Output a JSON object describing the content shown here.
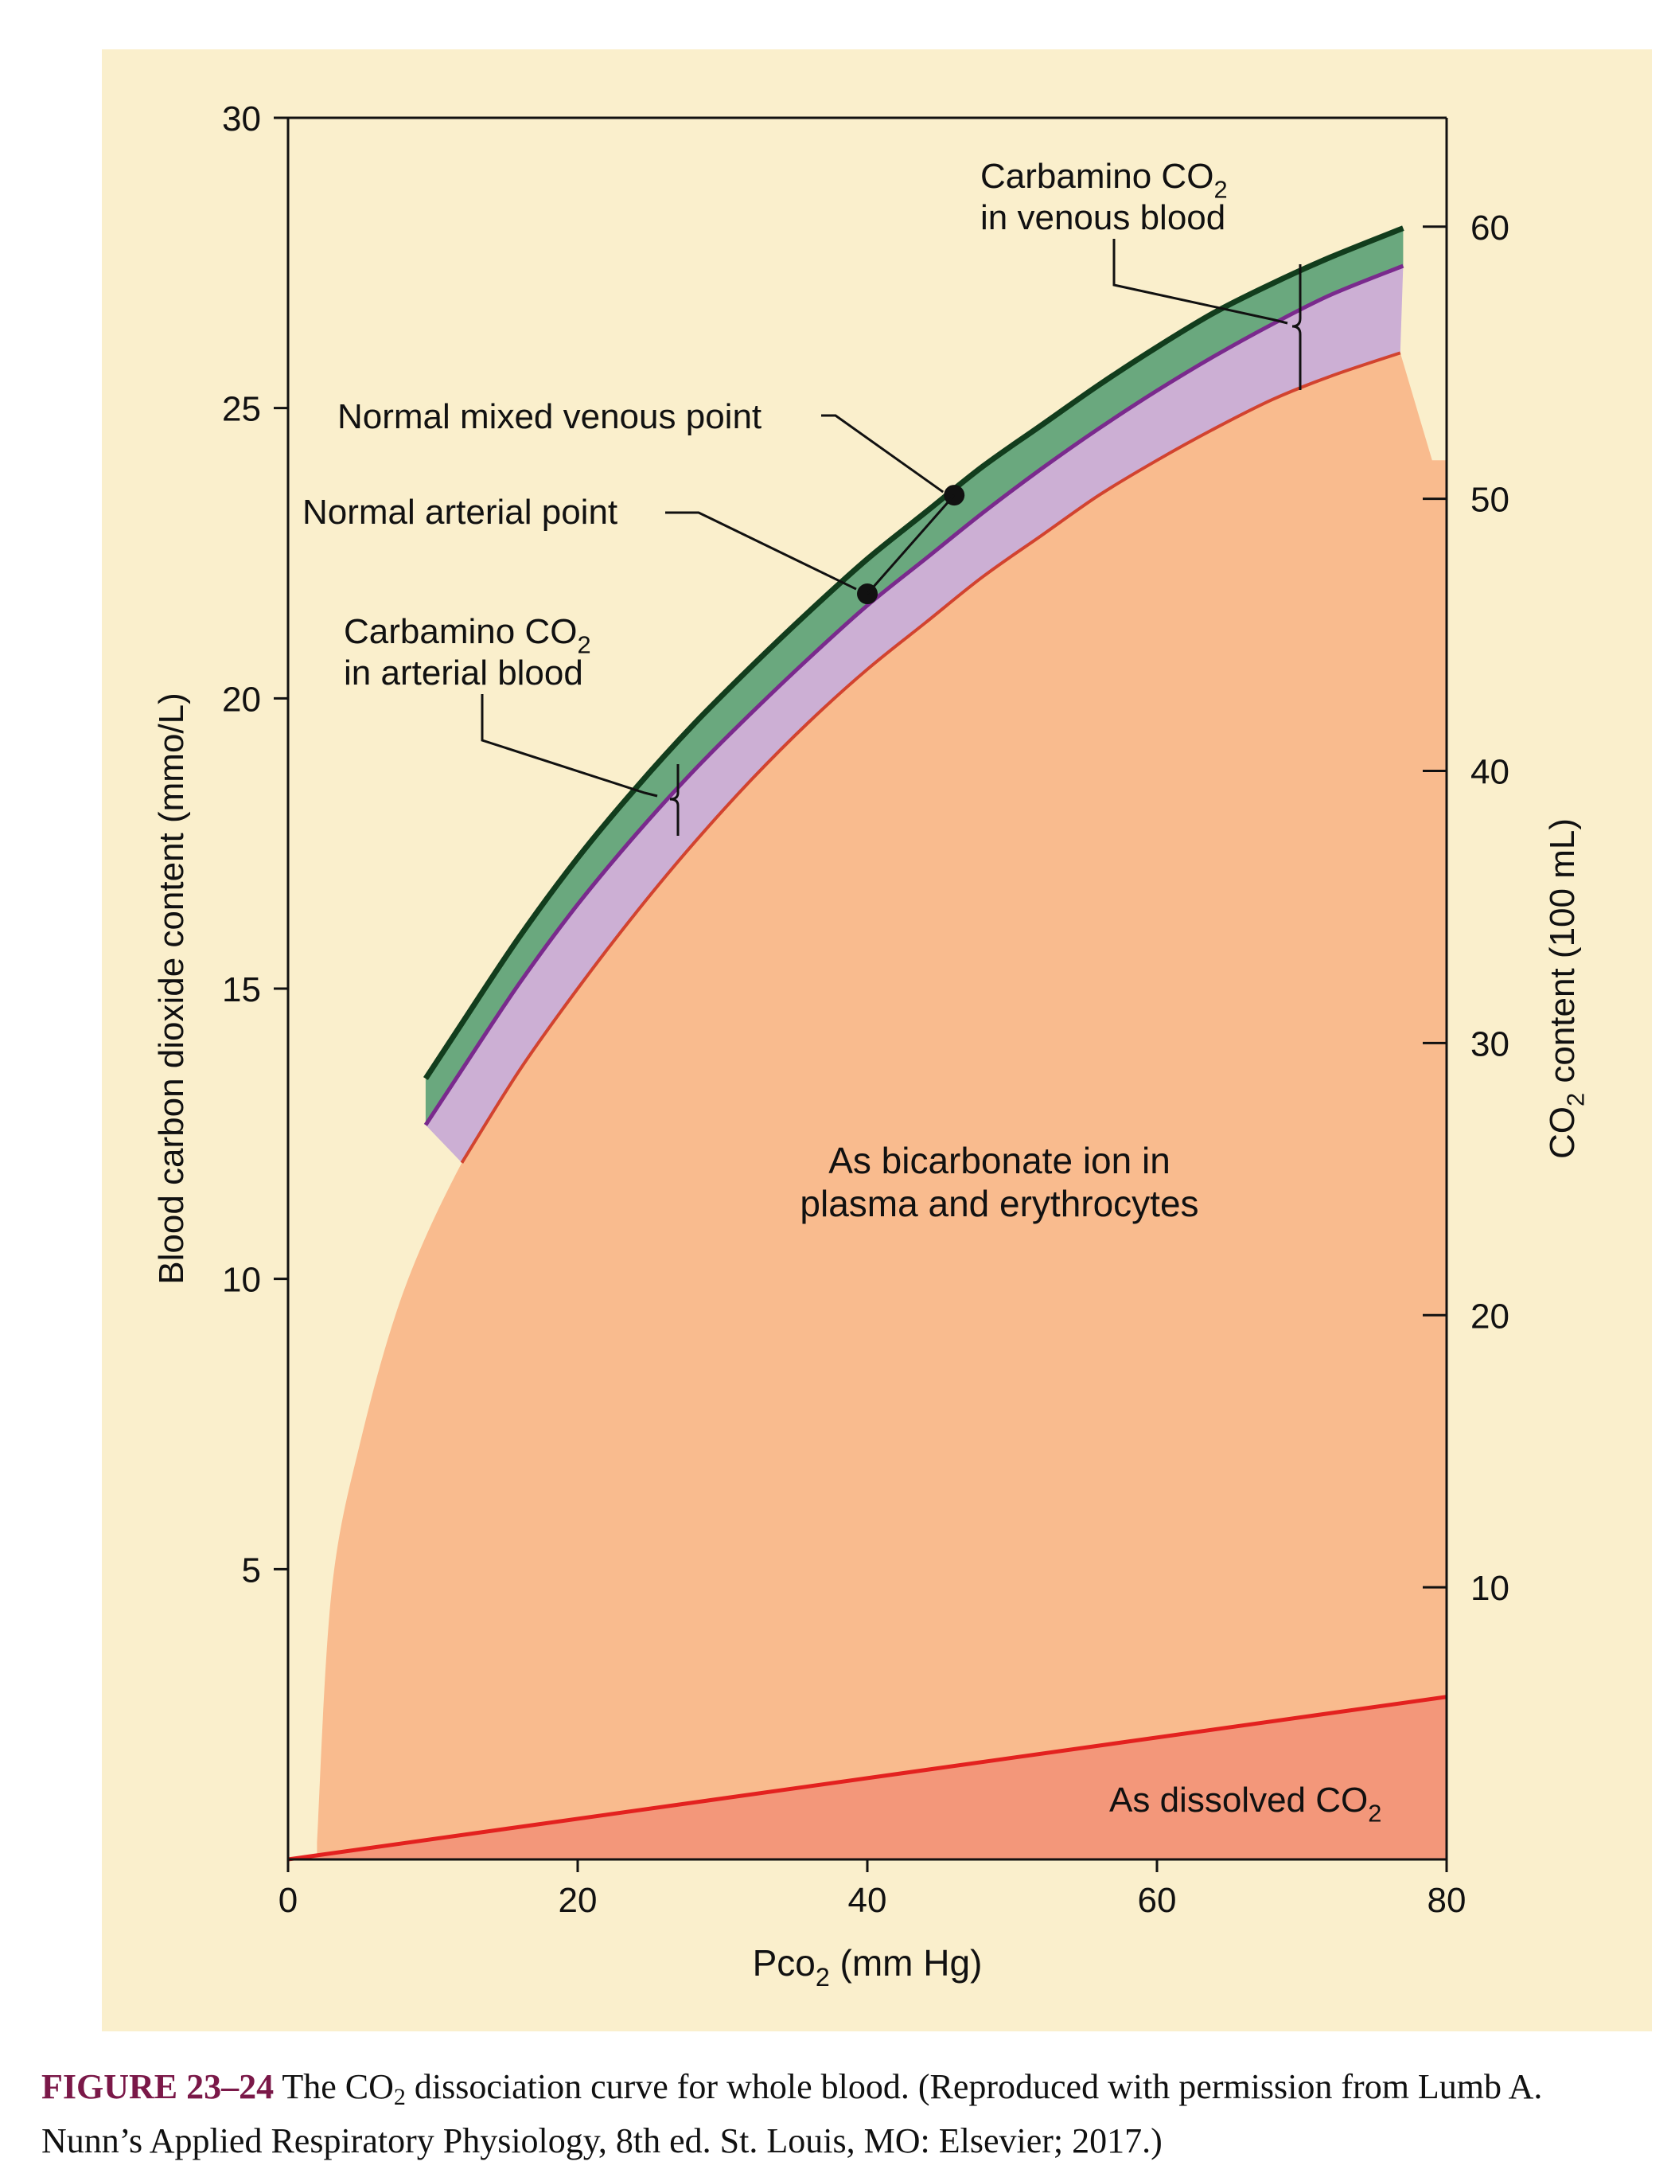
{
  "chart_data": {
    "type": "area",
    "x_label": {
      "prefix": "Pco",
      "sub": "2",
      "suffix": " (mm Hg)"
    },
    "y_label_left": "Blood carbon dioxide content (mmo/L)",
    "y_label_right": {
      "prefix": "CO",
      "sub": "2",
      "suffix": " content (100 mL)"
    },
    "xlim": [
      0,
      80
    ],
    "ylim_left": [
      0,
      30
    ],
    "ylim_right": [
      0,
      64
    ],
    "x_ticks": [
      0,
      20,
      40,
      60,
      80
    ],
    "y_ticks_left": [
      5,
      10,
      15,
      20,
      25,
      30
    ],
    "y_ticks_right": [
      10,
      20,
      30,
      40,
      50,
      60
    ],
    "grid": false,
    "series": [
      {
        "name": "As dissolved CO2",
        "role": "dissolved",
        "x": [
          0,
          80
        ],
        "y": [
          0,
          2.8
        ]
      },
      {
        "name": "As bicarbonate ion in plasma and erythrocytes",
        "role": "bicarbonate",
        "x": [
          2,
          3,
          5,
          8,
          12,
          16,
          20,
          24,
          28,
          32,
          36,
          40,
          44,
          48,
          52,
          56,
          60,
          64,
          68,
          72,
          76.8
        ],
        "y": [
          0.3,
          4.6,
          7.2,
          9.8,
          12.0,
          13.6,
          15.0,
          16.3,
          17.5,
          18.6,
          19.6,
          20.5,
          21.3,
          22.1,
          22.8,
          23.5,
          24.1,
          24.65,
          25.15,
          25.55,
          25.95
        ]
      },
      {
        "name": "Carbamino CO2 in arterial blood",
        "role": "arterial",
        "x": [
          9.5,
          12,
          16,
          20,
          24,
          28,
          32,
          36,
          40,
          44,
          48,
          52,
          56,
          60,
          64,
          68,
          72,
          77
        ],
        "y": [
          12.65,
          13.6,
          15.1,
          16.45,
          17.65,
          18.75,
          19.75,
          20.7,
          21.6,
          22.4,
          23.2,
          23.95,
          24.65,
          25.3,
          25.9,
          26.45,
          26.95,
          27.45
        ]
      },
      {
        "name": "Carbamino CO2 in venous blood",
        "role": "venous",
        "x": [
          9.5,
          12,
          16,
          20,
          24,
          28,
          32,
          36,
          40,
          44,
          48,
          52,
          56,
          60,
          64,
          68,
          72,
          77
        ],
        "y": [
          13.45,
          14.4,
          15.9,
          17.25,
          18.45,
          19.55,
          20.55,
          21.5,
          22.4,
          23.2,
          24.0,
          24.7,
          25.4,
          26.05,
          26.65,
          27.15,
          27.6,
          28.1
        ]
      }
    ],
    "points": [
      {
        "name": "Normal mixed venous point",
        "x": 46,
        "y": 23.5
      },
      {
        "name": "Normal arterial point",
        "x": 40,
        "y": 21.8
      }
    ],
    "labels": {
      "carbamino_venous": {
        "line1_prefix": "Carbamino CO",
        "line1_sub": "2",
        "line2": "in venous blood"
      },
      "carbamino_arterial": {
        "line1_prefix": "Carbamino CO",
        "line1_sub": "2",
        "line2": "in arterial blood"
      },
      "mixed_venous": "Normal mixed venous point",
      "arterial": "Normal arterial point",
      "bicarbonate_line1": "As bicarbonate ion in",
      "bicarbonate_line2": "plasma and erythrocytes",
      "dissolved_prefix": "As dissolved CO",
      "dissolved_sub": "2"
    },
    "colors": {
      "panel": "#faefcc",
      "bicarbonate": "#f9bb8e",
      "dissolved": "#f3977a",
      "dissolved_line": "#e3211f",
      "arterial_band": "#ccafd4",
      "arterial_line": "#7a2a8d",
      "venous_band": "#6aa87e",
      "venous_line": "#123d1d",
      "bicarb_edge": "#d2432f"
    }
  },
  "caption": {
    "label": "FIGURE 23–24",
    "text_before": " The CO",
    "sub": "2",
    "text_after": " dissociation curve for whole blood. (Reproduced with permission from Lumb A. Nunn’s Applied Respiratory Physiology, 8th ed. St. Louis, MO: Elsevier; 2017.)"
  }
}
